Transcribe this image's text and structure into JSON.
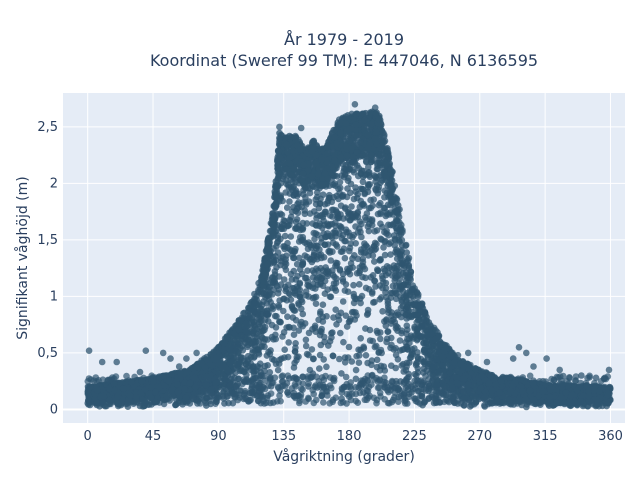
{
  "chart_data": {
    "type": "scatter",
    "title_lines": [
      "År 1979 - 2019",
      "Koordinat (Sweref 99 TM): E 447046, N 6136595"
    ],
    "xlabel": "Vågriktning (grader)",
    "ylabel": "Signifikant våghöjd (m)",
    "xlim": [
      -17,
      370
    ],
    "ylim": [
      -0.12,
      2.8
    ],
    "xticks": [
      0,
      45,
      90,
      135,
      180,
      225,
      270,
      315,
      360
    ],
    "xtick_labels": [
      "0",
      "45",
      "90",
      "135",
      "180",
      "225",
      "270",
      "315",
      "360"
    ],
    "yticks": [
      0,
      0.5,
      1,
      1.5,
      2,
      2.5
    ],
    "ytick_labels": [
      "0",
      "0,5",
      "1",
      "1,5",
      "2",
      "2,5"
    ],
    "grid": true,
    "legend": "none",
    "colors": {
      "marker": "#2f5670",
      "plot_bg": "#e5ecf6",
      "grid": "#ffffff",
      "text": "#2a3f5f"
    },
    "envelope": {
      "direction": [
        0,
        45,
        70,
        90,
        100,
        110,
        120,
        128,
        132,
        135,
        145,
        150,
        155,
        160,
        165,
        170,
        175,
        180,
        190,
        200,
        205,
        210,
        218,
        225,
        235,
        245,
        255,
        270,
        280,
        315,
        360
      ],
      "max_height": [
        0.2,
        0.28,
        0.35,
        0.55,
        0.72,
        0.9,
        1.2,
        1.8,
        2.45,
        2.42,
        2.42,
        2.3,
        2.4,
        2.3,
        2.35,
        2.5,
        2.6,
        2.62,
        2.62,
        2.65,
        2.4,
        2.1,
        1.55,
        1.1,
        0.8,
        0.6,
        0.45,
        0.35,
        0.3,
        0.22,
        0.2
      ]
    },
    "outliers": [
      {
        "x": 1,
        "y": 0.52
      },
      {
        "x": 10,
        "y": 0.42
      },
      {
        "x": 20,
        "y": 0.42
      },
      {
        "x": 36,
        "y": 0.33
      },
      {
        "x": 40,
        "y": 0.52
      },
      {
        "x": 52,
        "y": 0.5
      },
      {
        "x": 57,
        "y": 0.45
      },
      {
        "x": 63,
        "y": 0.38
      },
      {
        "x": 68,
        "y": 0.45
      },
      {
        "x": 75,
        "y": 0.5
      },
      {
        "x": 255,
        "y": 0.48
      },
      {
        "x": 262,
        "y": 0.5
      },
      {
        "x": 275,
        "y": 0.42
      },
      {
        "x": 293,
        "y": 0.45
      },
      {
        "x": 297,
        "y": 0.55
      },
      {
        "x": 302,
        "y": 0.5
      },
      {
        "x": 307,
        "y": 0.38
      },
      {
        "x": 316,
        "y": 0.45
      },
      {
        "x": 325,
        "y": 0.35
      },
      {
        "x": 340,
        "y": 0.3
      },
      {
        "x": 350,
        "y": 0.28
      },
      {
        "x": 359,
        "y": 0.35
      },
      {
        "x": 147,
        "y": 2.49
      },
      {
        "x": 184,
        "y": 2.7
      },
      {
        "x": 198,
        "y": 2.67
      },
      {
        "x": 132,
        "y": 2.5
      }
    ]
  }
}
